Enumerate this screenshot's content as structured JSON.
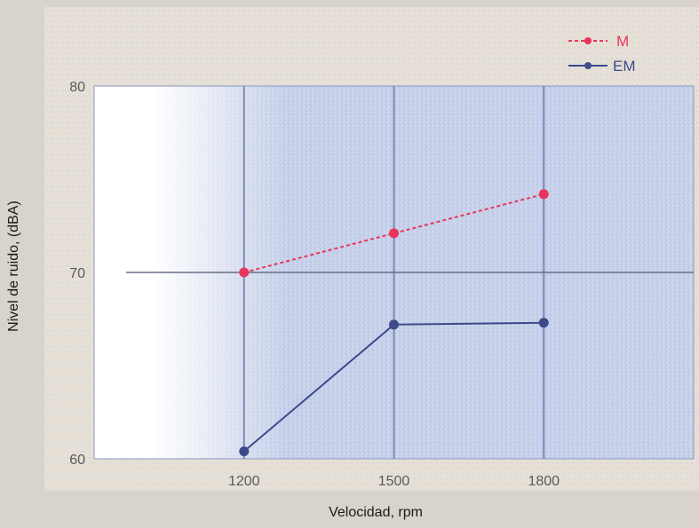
{
  "chart_data": {
    "type": "line",
    "x": [
      1200,
      1500,
      1800
    ],
    "series": [
      {
        "name": "M",
        "values": [
          70.0,
          72.1,
          74.2
        ],
        "color": "#e8365a",
        "style": "dashed"
      },
      {
        "name": "EM",
        "values": [
          60.4,
          67.2,
          67.3
        ],
        "color": "#3d4a8c",
        "style": "solid"
      }
    ],
    "xticks": [
      "1200",
      "1500",
      "1800"
    ],
    "yticks": [
      "60",
      "70",
      "80"
    ],
    "xlabel": "Velocidad, rpm",
    "ylabel": "Nivel de ruido, (dBA)",
    "xlim": [
      900,
      2100
    ],
    "ylim": [
      60,
      80
    ],
    "grid": true,
    "legend": "top-right"
  }
}
